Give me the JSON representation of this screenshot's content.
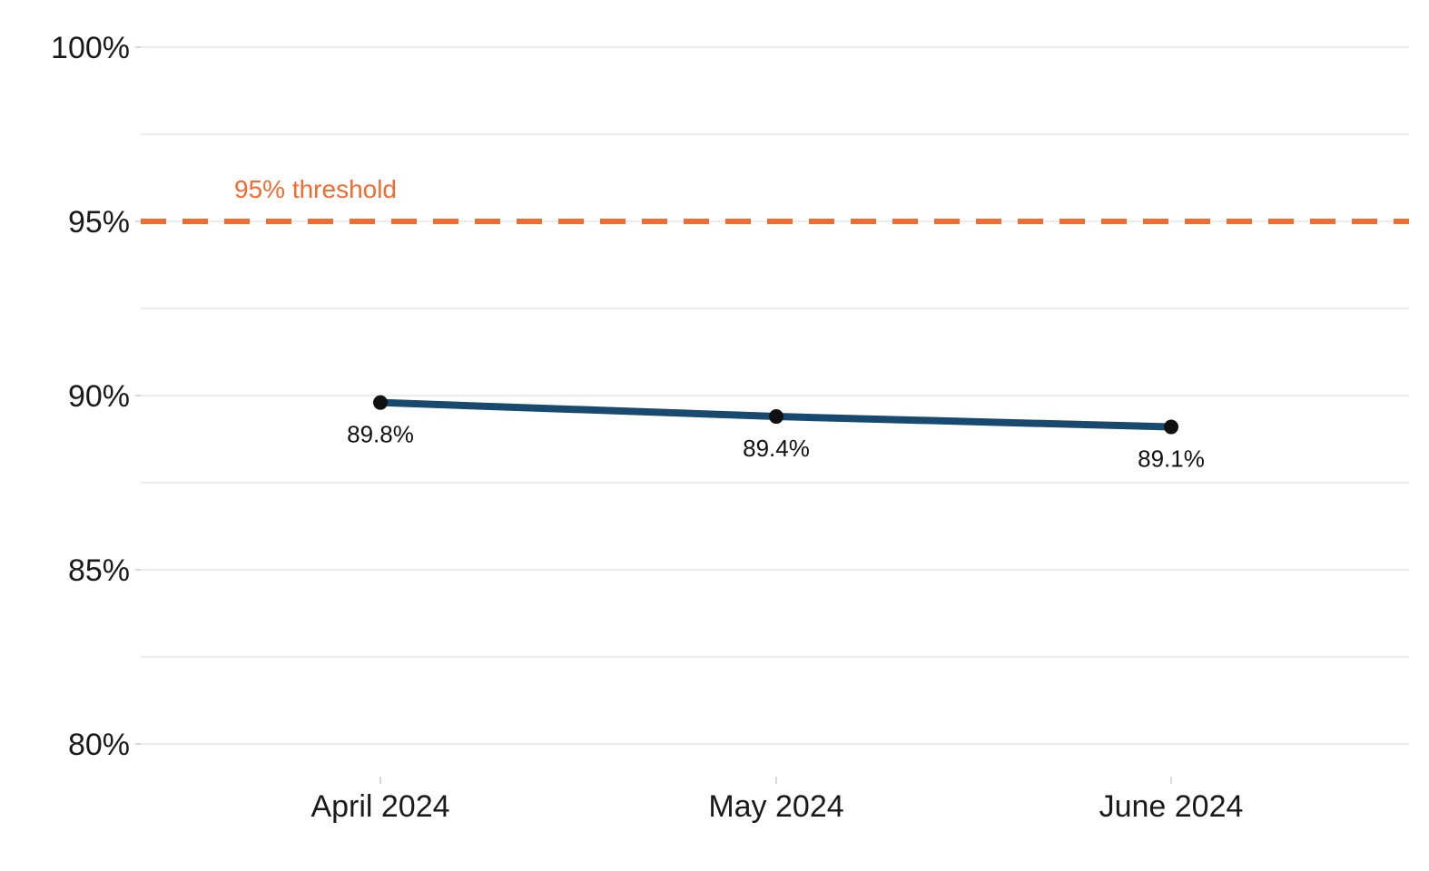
{
  "chart_data": {
    "type": "line",
    "title": "",
    "xlabel": "",
    "ylabel": "",
    "categories": [
      "April 2024",
      "May 2024",
      "June 2024"
    ],
    "series": [
      {
        "values": [
          89.8,
          89.4,
          89.1
        ],
        "labels": [
          "89.8%",
          "89.4%",
          "89.1%"
        ]
      }
    ],
    "ylim": [
      79,
      100.5
    ],
    "yticks": [
      80,
      85,
      90,
      95,
      100
    ],
    "ytick_labels": [
      "80%",
      "85%",
      "90%",
      "95%",
      "100%"
    ],
    "grid": true,
    "threshold": {
      "value": 95,
      "label": "95% threshold",
      "color": "#f26b2f"
    },
    "colors": {
      "line": "#184a70",
      "point": "#111111",
      "grid": "#e5e5e5",
      "tick": "#cccccc"
    }
  }
}
